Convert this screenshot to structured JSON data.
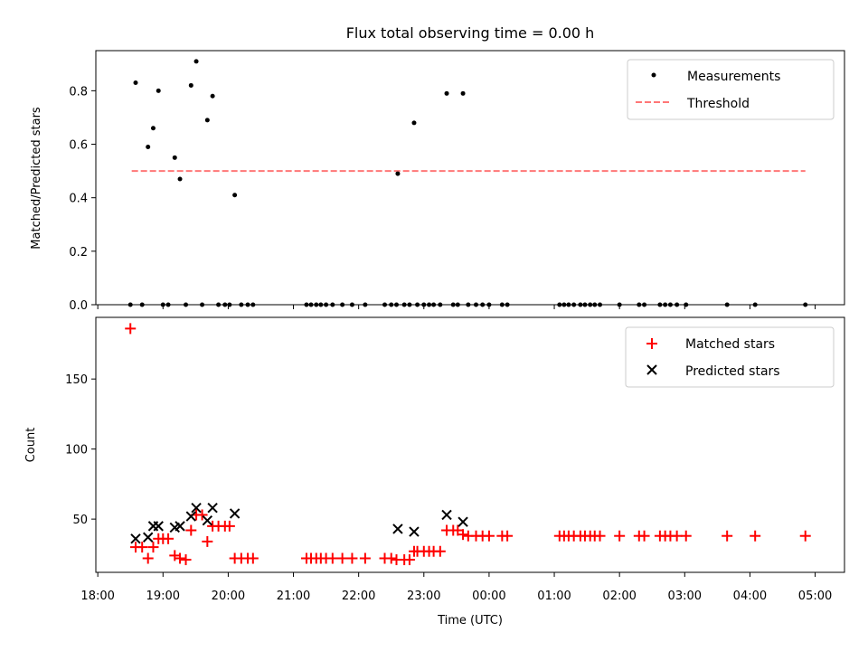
{
  "chart_data": [
    {
      "type": "scatter",
      "title": "Flux total observing time = 0.00 h",
      "xlabel": "",
      "ylabel": "Matched/Predicted stars",
      "ylim": [
        0,
        0.95
      ],
      "xlim_hours": [
        17.97,
        29.45
      ],
      "yticks": [
        0.0,
        0.2,
        0.4,
        0.6,
        0.8
      ],
      "ytick_labels": [
        "0.0",
        "0.2",
        "0.4",
        "0.6",
        "0.8"
      ],
      "legend_position": "top-right",
      "threshold": {
        "name": "Threshold",
        "value": 0.5,
        "x_range_hours": [
          18.52,
          28.85
        ],
        "color": "#ff7777"
      },
      "series": [
        {
          "name": "Measurements",
          "color": "#000000",
          "points": [
            [
              18.58,
              0.83
            ],
            [
              18.77,
              0.59
            ],
            [
              18.85,
              0.66
            ],
            [
              18.93,
              0.8
            ],
            [
              19.18,
              0.55
            ],
            [
              19.26,
              0.47
            ],
            [
              19.43,
              0.82
            ],
            [
              19.51,
              0.91
            ],
            [
              19.68,
              0.69
            ],
            [
              19.76,
              0.78
            ],
            [
              20.1,
              0.41
            ],
            [
              22.6,
              0.49
            ],
            [
              22.85,
              0.68
            ],
            [
              23.35,
              0.79
            ],
            [
              23.6,
              0.79
            ],
            [
              18.5,
              0
            ],
            [
              18.68,
              0
            ],
            [
              19.0,
              0
            ],
            [
              19.08,
              0
            ],
            [
              19.35,
              0
            ],
            [
              19.6,
              0
            ],
            [
              19.85,
              0
            ],
            [
              19.95,
              0
            ],
            [
              20.02,
              0
            ],
            [
              20.2,
              0
            ],
            [
              20.3,
              0
            ],
            [
              20.38,
              0
            ],
            [
              21.2,
              0
            ],
            [
              21.27,
              0
            ],
            [
              21.35,
              0
            ],
            [
              21.42,
              0
            ],
            [
              21.5,
              0
            ],
            [
              21.6,
              0
            ],
            [
              21.75,
              0
            ],
            [
              21.9,
              0
            ],
            [
              22.1,
              0
            ],
            [
              22.4,
              0
            ],
            [
              22.5,
              0
            ],
            [
              22.58,
              0
            ],
            [
              22.7,
              0
            ],
            [
              22.78,
              0
            ],
            [
              22.9,
              0
            ],
            [
              23.0,
              0
            ],
            [
              23.08,
              0
            ],
            [
              23.15,
              0
            ],
            [
              23.25,
              0
            ],
            [
              23.45,
              0
            ],
            [
              23.52,
              0
            ],
            [
              23.68,
              0
            ],
            [
              23.8,
              0
            ],
            [
              23.9,
              0
            ],
            [
              24.0,
              0
            ],
            [
              24.2,
              0
            ],
            [
              24.28,
              0
            ],
            [
              25.08,
              0
            ],
            [
              25.15,
              0
            ],
            [
              25.22,
              0
            ],
            [
              25.3,
              0
            ],
            [
              25.4,
              0
            ],
            [
              25.47,
              0
            ],
            [
              25.55,
              0
            ],
            [
              25.62,
              0
            ],
            [
              25.7,
              0
            ],
            [
              26.0,
              0
            ],
            [
              26.3,
              0
            ],
            [
              26.38,
              0
            ],
            [
              26.62,
              0
            ],
            [
              26.7,
              0
            ],
            [
              26.78,
              0
            ],
            [
              26.88,
              0
            ],
            [
              27.02,
              0
            ],
            [
              27.65,
              0
            ],
            [
              28.08,
              0
            ],
            [
              28.85,
              0
            ]
          ]
        }
      ]
    },
    {
      "type": "scatter",
      "title": "",
      "xlabel": "Time (UTC)",
      "ylabel": "Count",
      "ylim": [
        12,
        194
      ],
      "xlim_hours": [
        17.97,
        29.45
      ],
      "yticks": [
        50,
        100,
        150
      ],
      "ytick_labels": [
        "50",
        "100",
        "150"
      ],
      "xticks_hours": [
        18,
        19,
        20,
        21,
        22,
        23,
        24,
        25,
        26,
        27,
        28,
        29
      ],
      "xtick_labels": [
        "18:00",
        "19:00",
        "20:00",
        "21:00",
        "22:00",
        "23:00",
        "00:00",
        "01:00",
        "02:00",
        "03:00",
        "04:00",
        "05:00"
      ],
      "legend_position": "top-right",
      "series": [
        {
          "name": "Matched stars",
          "color": "#ff0000",
          "marker": "plus",
          "points": [
            [
              18.5,
              186
            ],
            [
              18.58,
              30
            ],
            [
              18.68,
              30
            ],
            [
              18.77,
              22
            ],
            [
              18.85,
              30
            ],
            [
              18.93,
              36
            ],
            [
              19.0,
              36
            ],
            [
              19.08,
              36
            ],
            [
              19.18,
              24
            ],
            [
              19.26,
              22
            ],
            [
              19.35,
              21
            ],
            [
              19.43,
              42
            ],
            [
              19.51,
              53
            ],
            [
              19.6,
              53
            ],
            [
              19.68,
              34
            ],
            [
              19.76,
              45
            ],
            [
              19.85,
              45
            ],
            [
              19.95,
              45
            ],
            [
              20.02,
              45
            ],
            [
              20.1,
              22
            ],
            [
              20.2,
              22
            ],
            [
              20.3,
              22
            ],
            [
              20.38,
              22
            ],
            [
              21.2,
              22
            ],
            [
              21.27,
              22
            ],
            [
              21.35,
              22
            ],
            [
              21.42,
              22
            ],
            [
              21.5,
              22
            ],
            [
              21.6,
              22
            ],
            [
              21.75,
              22
            ],
            [
              21.9,
              22
            ],
            [
              22.1,
              22
            ],
            [
              22.4,
              22
            ],
            [
              22.5,
              22
            ],
            [
              22.58,
              21
            ],
            [
              22.7,
              21
            ],
            [
              22.78,
              21
            ],
            [
              22.85,
              27
            ],
            [
              22.9,
              27
            ],
            [
              23.0,
              27
            ],
            [
              23.08,
              27
            ],
            [
              23.15,
              27
            ],
            [
              23.25,
              27
            ],
            [
              23.35,
              42
            ],
            [
              23.45,
              42
            ],
            [
              23.52,
              42
            ],
            [
              23.6,
              39
            ],
            [
              23.68,
              38
            ],
            [
              23.8,
              38
            ],
            [
              23.9,
              38
            ],
            [
              24.0,
              38
            ],
            [
              24.2,
              38
            ],
            [
              24.28,
              38
            ],
            [
              25.08,
              38
            ],
            [
              25.15,
              38
            ],
            [
              25.22,
              38
            ],
            [
              25.3,
              38
            ],
            [
              25.4,
              38
            ],
            [
              25.47,
              38
            ],
            [
              25.55,
              38
            ],
            [
              25.62,
              38
            ],
            [
              25.7,
              38
            ],
            [
              26.0,
              38
            ],
            [
              26.3,
              38
            ],
            [
              26.38,
              38
            ],
            [
              26.62,
              38
            ],
            [
              26.7,
              38
            ],
            [
              26.78,
              38
            ],
            [
              26.88,
              38
            ],
            [
              27.02,
              38
            ],
            [
              27.65,
              38
            ],
            [
              28.08,
              38
            ],
            [
              28.85,
              38
            ]
          ]
        },
        {
          "name": "Predicted stars",
          "color": "#000000",
          "marker": "x",
          "points": [
            [
              18.58,
              36
            ],
            [
              18.77,
              37
            ],
            [
              18.85,
              45
            ],
            [
              18.93,
              45
            ],
            [
              19.18,
              44
            ],
            [
              19.26,
              45
            ],
            [
              19.43,
              52
            ],
            [
              19.51,
              58
            ],
            [
              19.68,
              49
            ],
            [
              19.76,
              58
            ],
            [
              20.1,
              54
            ],
            [
              22.6,
              43
            ],
            [
              22.85,
              41
            ],
            [
              23.35,
              53
            ],
            [
              23.6,
              48
            ]
          ]
        }
      ]
    }
  ],
  "colors": {
    "matched": "#ff0000",
    "predicted": "#000000",
    "measurements": "#000000",
    "threshold": "#ff7777"
  }
}
